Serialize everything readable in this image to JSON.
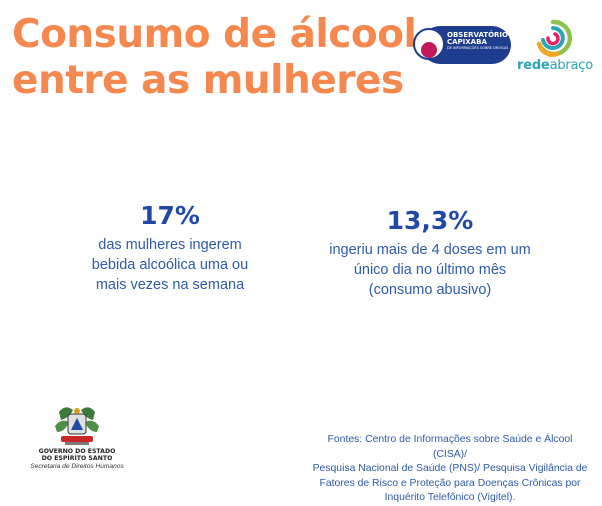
{
  "header": {
    "title_line1": "Consumo de álcool",
    "title_line2": "entre as mulheres"
  },
  "logos": {
    "observatorio": {
      "line1": "OBSERVATÓRIO",
      "line2": "CAPIXABA",
      "line3": "DE INFORMAÇÕES SOBRE DROGAS"
    },
    "rede_abraco": {
      "word1": "rede",
      "word2": "abraço"
    }
  },
  "stats": [
    {
      "value": "17%",
      "lines": [
        "das mulheres ingerem",
        "bebida alcoólica uma ou",
        "mais vezes na semana"
      ]
    },
    {
      "value": "13,3%",
      "lines": [
        "ingeriu mais de 4 doses em um",
        "único dia no último mês",
        "(consumo abusivo)"
      ]
    }
  ],
  "government": {
    "line1": "GOVERNO DO ESTADO",
    "line2": "DO ESPÍRITO SANTO",
    "secretaria": "Secretaria de Direitos Humanos"
  },
  "sources": {
    "lines": [
      "Fontes: Centro de Informações sobre Saúde e Álcool (CISA)/",
      "Pesquisa Nacional de Saúde (PNS)/ Pesquisa Vigilância de",
      "Fatores de Risco e Proteção para Doenças Crônicas por",
      "Inquérito Telefônico (Vigitel)."
    ]
  },
  "colors": {
    "title": "#f5884f",
    "stat_value": "#1e49a6",
    "stat_text": "#2f5aa8",
    "observatorio_blue": "#1e3d8f",
    "observatorio_magenta": "#c2185b",
    "rede_teal": "#2aa5b5"
  }
}
